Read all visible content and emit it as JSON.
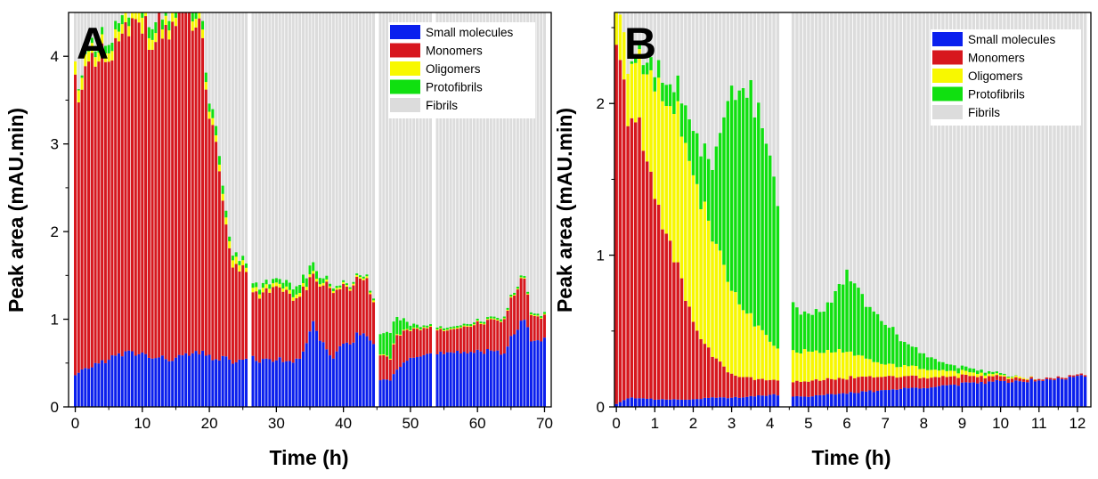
{
  "legend_labels": [
    "Small molecules",
    "Monomers",
    "Oligomers",
    "Protofibrils",
    "Fibrils"
  ],
  "colors": {
    "Small molecules": "#0a1fee",
    "Monomers": "#d7171e",
    "Oligomers": "#f8f800",
    "Protofibrils": "#10e010",
    "Fibrils": "#dcdcdc"
  },
  "chart_data": [
    {
      "type": "bar",
      "panel_label": "A",
      "stacked": true,
      "xlabel": "Time (h)",
      "ylabel": "Peak area (mAU.min)",
      "xlim": [
        -1,
        71
      ],
      "ylim": [
        0,
        4.5
      ],
      "xticks": [
        0,
        10,
        20,
        30,
        40,
        50,
        60,
        70
      ],
      "yticks": [
        0,
        1,
        2,
        3,
        4
      ],
      "gaps": [
        [
          25.7,
          26.3
        ],
        [
          44.7,
          45.3
        ],
        [
          53.3,
          53.7
        ]
      ],
      "keypoints": {
        "x": [
          0,
          2,
          5,
          8,
          10,
          12,
          15,
          17,
          19,
          20,
          21,
          22,
          23,
          24,
          25.5,
          26.5,
          28,
          30,
          32,
          34,
          35.5,
          37,
          38,
          40,
          42,
          43.5,
          44.5,
          45.5,
          47,
          48,
          50,
          52,
          55,
          58,
          60,
          62,
          64,
          66,
          67,
          68,
          70
        ],
        "small_molecules": [
          0.35,
          0.45,
          0.55,
          0.62,
          0.6,
          0.55,
          0.55,
          0.6,
          0.6,
          0.58,
          0.55,
          0.55,
          0.53,
          0.52,
          0.52,
          0.55,
          0.52,
          0.55,
          0.5,
          0.6,
          0.92,
          0.72,
          0.55,
          0.72,
          0.8,
          0.8,
          0.72,
          0.3,
          0.3,
          0.45,
          0.6,
          0.6,
          0.6,
          0.6,
          0.65,
          0.65,
          0.62,
          0.9,
          0.95,
          0.8,
          0.78
        ],
        "monomers": [
          3.3,
          3.35,
          3.4,
          3.6,
          3.8,
          3.75,
          3.8,
          3.9,
          3.55,
          2.7,
          2.35,
          1.7,
          1.2,
          1.08,
          1.02,
          0.75,
          0.8,
          0.8,
          0.75,
          0.7,
          0.55,
          0.65,
          0.8,
          0.65,
          0.6,
          0.62,
          0.5,
          0.28,
          0.25,
          0.4,
          0.32,
          0.3,
          0.25,
          0.28,
          0.32,
          0.35,
          0.38,
          0.45,
          0.5,
          0.3,
          0.27
        ],
        "oligomers": [
          0.15,
          0.12,
          0.1,
          0.12,
          0.18,
          0.1,
          0.1,
          0.1,
          0.1,
          0.08,
          0.07,
          0.08,
          0.08,
          0.08,
          0.05,
          0.05,
          0.05,
          0.04,
          0.04,
          0.04,
          0.03,
          0.03,
          0.02,
          0.02,
          0.02,
          0.02,
          0.02,
          0.01,
          0.01,
          0.01,
          0.01,
          0.01,
          0.01,
          0.01,
          0.01,
          0.01,
          0.01,
          0.01,
          0.01,
          0.01,
          0.01
        ],
        "protofibrils": [
          0.0,
          0.05,
          0.1,
          0.1,
          0.12,
          0.12,
          0.1,
          0.12,
          0.1,
          0.1,
          0.1,
          0.1,
          0.05,
          0.05,
          0.05,
          0.05,
          0.05,
          0.05,
          0.08,
          0.1,
          0.1,
          0.05,
          0.03,
          0.02,
          0.02,
          0.02,
          0.02,
          0.22,
          0.3,
          0.2,
          0.05,
          0.02,
          0.02,
          0.02,
          0.02,
          0.02,
          0.02,
          0.02,
          0.02,
          0.02,
          0.02
        ],
        "fibrils_total": [
          4.5,
          4.5,
          4.5,
          4.5,
          4.5,
          4.5,
          4.5,
          4.5,
          4.5,
          4.5,
          4.5,
          4.5,
          4.5,
          4.5,
          4.5,
          4.5,
          4.5,
          4.5,
          4.5,
          4.5,
          4.5,
          4.5,
          4.5,
          4.5,
          4.5,
          4.5,
          4.5,
          4.5,
          4.5,
          4.5,
          4.5,
          4.5,
          4.5,
          4.5,
          4.5,
          4.5,
          4.5,
          4.5,
          4.5,
          4.5,
          4.5
        ]
      }
    },
    {
      "type": "bar",
      "panel_label": "B",
      "stacked": true,
      "xlabel": "Time (h)",
      "ylabel": "Peak area (mAU.min)",
      "xlim": [
        -0.05,
        12.35
      ],
      "ylim": [
        0,
        2.6
      ],
      "xticks": [
        0,
        1,
        2,
        3,
        4,
        5,
        6,
        7,
        8,
        9,
        10,
        11,
        12
      ],
      "yticks": [
        0,
        1,
        2
      ],
      "gaps": [
        [
          4.22,
          4.55
        ]
      ],
      "keypoints": {
        "x": [
          0,
          0.3,
          0.6,
          1.0,
          1.5,
          2.0,
          2.5,
          3.0,
          3.5,
          4.0,
          4.2,
          4.6,
          5.0,
          5.5,
          6.0,
          6.5,
          7.0,
          7.5,
          8.0,
          8.5,
          9.0,
          9.5,
          10.0,
          10.5,
          11.0,
          11.5,
          12.2
        ],
        "small_molecules": [
          0.02,
          0.06,
          0.06,
          0.05,
          0.05,
          0.05,
          0.06,
          0.06,
          0.07,
          0.08,
          0.08,
          0.07,
          0.07,
          0.08,
          0.09,
          0.1,
          0.11,
          0.12,
          0.13,
          0.14,
          0.15,
          0.16,
          0.17,
          0.17,
          0.18,
          0.19,
          0.2
        ],
        "monomers": [
          2.3,
          1.9,
          1.75,
          1.35,
          0.95,
          0.5,
          0.28,
          0.15,
          0.12,
          0.1,
          0.1,
          0.1,
          0.1,
          0.1,
          0.1,
          0.1,
          0.09,
          0.08,
          0.07,
          0.06,
          0.05,
          0.04,
          0.03,
          0.02,
          0.01,
          0.01,
          0.01
        ],
        "oligomers": [
          0.25,
          0.35,
          0.45,
          0.75,
          1.0,
          1.0,
          0.8,
          0.55,
          0.4,
          0.25,
          0.2,
          0.2,
          0.2,
          0.18,
          0.18,
          0.12,
          0.08,
          0.07,
          0.06,
          0.04,
          0.03,
          0.02,
          0.01,
          0.01,
          0.0,
          0.0,
          0.0
        ],
        "protofibrils": [
          0.0,
          0.0,
          0.05,
          0.1,
          0.15,
          0.3,
          0.45,
          1.3,
          1.55,
          1.2,
          0.9,
          0.3,
          0.25,
          0.3,
          0.52,
          0.35,
          0.28,
          0.15,
          0.1,
          0.05,
          0.03,
          0.02,
          0.01,
          0.0,
          0.0,
          0.0,
          0.0
        ],
        "fibrils_total": [
          2.6,
          2.6,
          2.6,
          2.6,
          2.6,
          2.6,
          2.6,
          2.6,
          2.6,
          2.6,
          2.6,
          2.6,
          2.6,
          2.6,
          2.6,
          2.6,
          2.6,
          2.6,
          2.6,
          2.6,
          2.6,
          2.6,
          2.6,
          2.6,
          2.6,
          2.6,
          2.6
        ]
      }
    }
  ]
}
